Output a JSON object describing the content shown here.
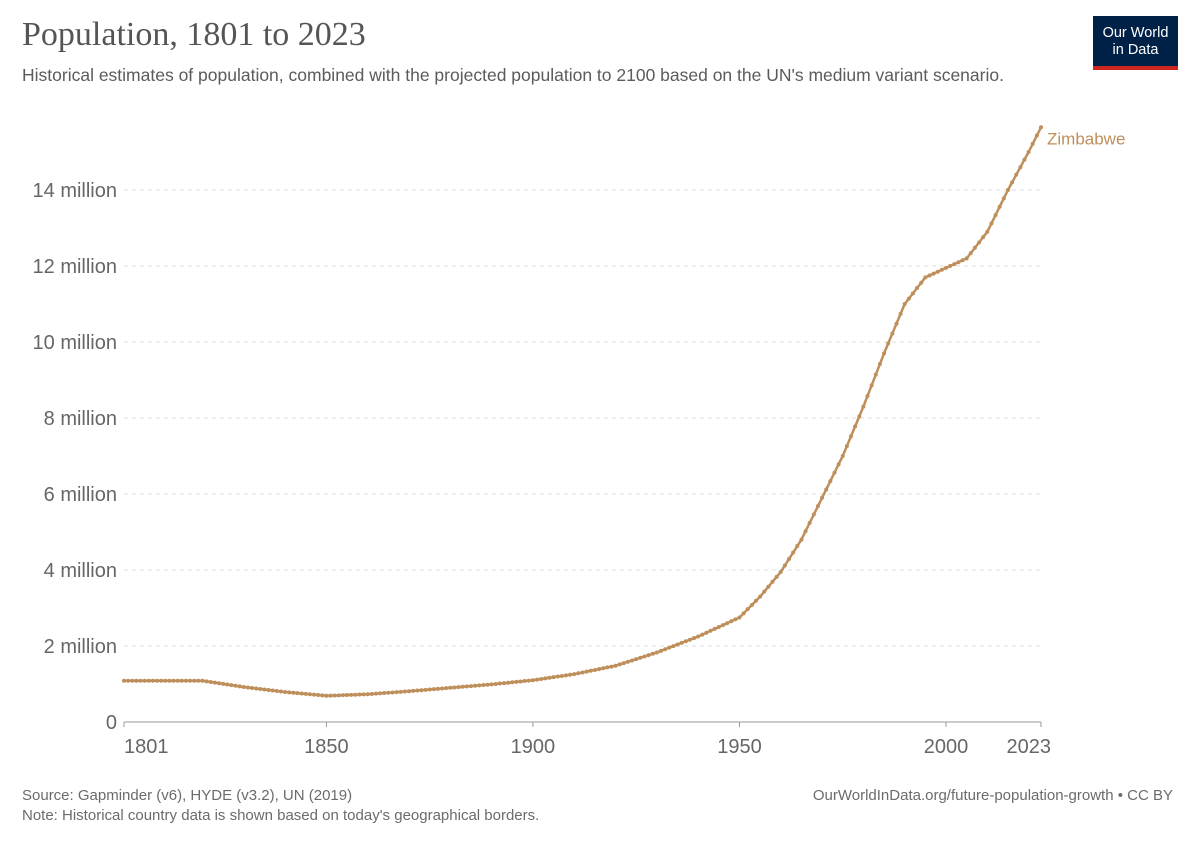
{
  "header": {
    "title": "Population, 1801 to 2023",
    "subtitle": "Historical estimates of population, combined with the projected population to 2100 based on the UN's medium variant scenario."
  },
  "logo": {
    "line1": "Our World",
    "line2": "in Data"
  },
  "footer": {
    "source": "Source: Gapminder (v6), HYDE (v3.2), UN (2019)",
    "note": "Note: Historical country data is shown based on today's geographical borders.",
    "url": "OurWorldInData.org/future-population-growth • CC BY"
  },
  "colors": {
    "series": "#be8f5b",
    "grid": "#dddddd",
    "axis": "#999999",
    "brand": "#002147",
    "brand_accent": "#ce261e"
  },
  "chart_data": {
    "type": "line",
    "title": "Population, 1801 to 2023",
    "xlim": [
      1801,
      2023
    ],
    "ylim": [
      0,
      15700000
    ],
    "grid": "horizontal-dashed",
    "y_ticks": [
      {
        "value": 0,
        "label": "0"
      },
      {
        "value": 2000000,
        "label": "2 million"
      },
      {
        "value": 4000000,
        "label": "4 million"
      },
      {
        "value": 6000000,
        "label": "6 million"
      },
      {
        "value": 8000000,
        "label": "8 million"
      },
      {
        "value": 10000000,
        "label": "10 million"
      },
      {
        "value": 12000000,
        "label": "12 million"
      },
      {
        "value": 14000000,
        "label": "14 million"
      }
    ],
    "x_ticks": [
      {
        "value": 1801,
        "label": "1801"
      },
      {
        "value": 1850,
        "label": "1850"
      },
      {
        "value": 1900,
        "label": "1900"
      },
      {
        "value": 1950,
        "label": "1950"
      },
      {
        "value": 2000,
        "label": "2000"
      },
      {
        "value": 2023,
        "label": "2023"
      }
    ],
    "series": [
      {
        "name": "Zimbabwe",
        "points": [
          [
            1801,
            1085000
          ],
          [
            1820,
            1085000
          ],
          [
            1830,
            920000
          ],
          [
            1840,
            790000
          ],
          [
            1850,
            690000
          ],
          [
            1860,
            730000
          ],
          [
            1870,
            810000
          ],
          [
            1880,
            900000
          ],
          [
            1890,
            990000
          ],
          [
            1900,
            1100000
          ],
          [
            1910,
            1260000
          ],
          [
            1920,
            1480000
          ],
          [
            1930,
            1830000
          ],
          [
            1940,
            2250000
          ],
          [
            1950,
            2750000
          ],
          [
            1955,
            3300000
          ],
          [
            1960,
            3950000
          ],
          [
            1965,
            4800000
          ],
          [
            1970,
            5900000
          ],
          [
            1975,
            7000000
          ],
          [
            1980,
            8300000
          ],
          [
            1985,
            9700000
          ],
          [
            1990,
            11000000
          ],
          [
            1995,
            11700000
          ],
          [
            2000,
            11950000
          ],
          [
            2005,
            12200000
          ],
          [
            2010,
            12900000
          ],
          [
            2015,
            14000000
          ],
          [
            2020,
            15000000
          ],
          [
            2023,
            15650000
          ]
        ]
      }
    ]
  }
}
